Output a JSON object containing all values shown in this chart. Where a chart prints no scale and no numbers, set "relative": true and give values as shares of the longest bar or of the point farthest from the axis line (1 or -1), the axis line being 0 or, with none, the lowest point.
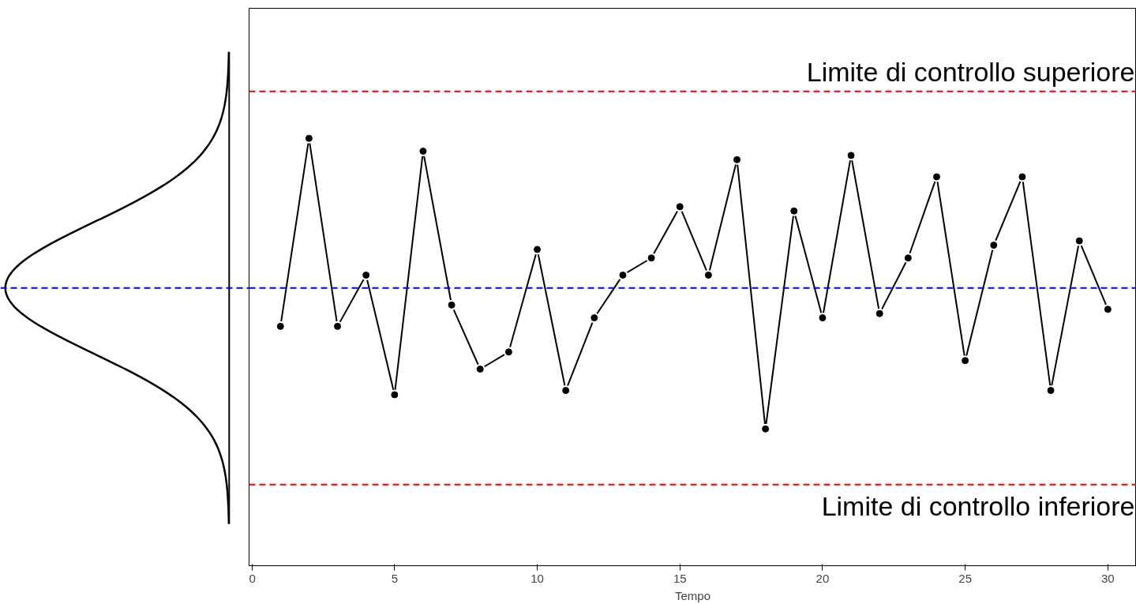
{
  "chart_data": {
    "type": "line",
    "relative": true,
    "xlabel": "Tempo",
    "x": [
      1,
      2,
      3,
      4,
      5,
      6,
      7,
      8,
      9,
      10,
      11,
      12,
      13,
      14,
      15,
      16,
      17,
      18,
      19,
      20,
      21,
      22,
      23,
      24,
      25,
      26,
      27,
      28,
      29,
      30
    ],
    "series": [
      {
        "color": "#000000",
        "values": [
          0.56,
          1.0,
          0.56,
          0.68,
          0.4,
          0.97,
          0.61,
          0.46,
          0.5,
          0.74,
          0.41,
          0.58,
          0.68,
          0.72,
          0.84,
          0.68,
          0.95,
          0.32,
          0.83,
          0.58,
          0.96,
          0.59,
          0.72,
          0.91,
          0.48,
          0.75,
          0.91,
          0.41,
          0.76,
          0.6
        ]
      }
    ],
    "xlim": [
      -0.1,
      31.0
    ],
    "xticks": [
      0,
      5,
      10,
      15,
      20,
      25,
      30
    ],
    "marker": "circle",
    "line_style": "solid",
    "grid": false,
    "tick_labels": "x",
    "ref_lines": [
      {
        "axis": "y",
        "value": 1.11,
        "label": "Limite di controllo superiore",
        "color": "#ff0000",
        "line_style": "dashed"
      },
      {
        "axis": "y",
        "value": 0.65,
        "label": null,
        "color": "#0000ff",
        "line_style": "dashed"
      },
      {
        "axis": "y",
        "value": 0.19,
        "label": "Limite di controllo inferiore",
        "color": "#ff0000",
        "line_style": "dashed"
      }
    ]
  }
}
